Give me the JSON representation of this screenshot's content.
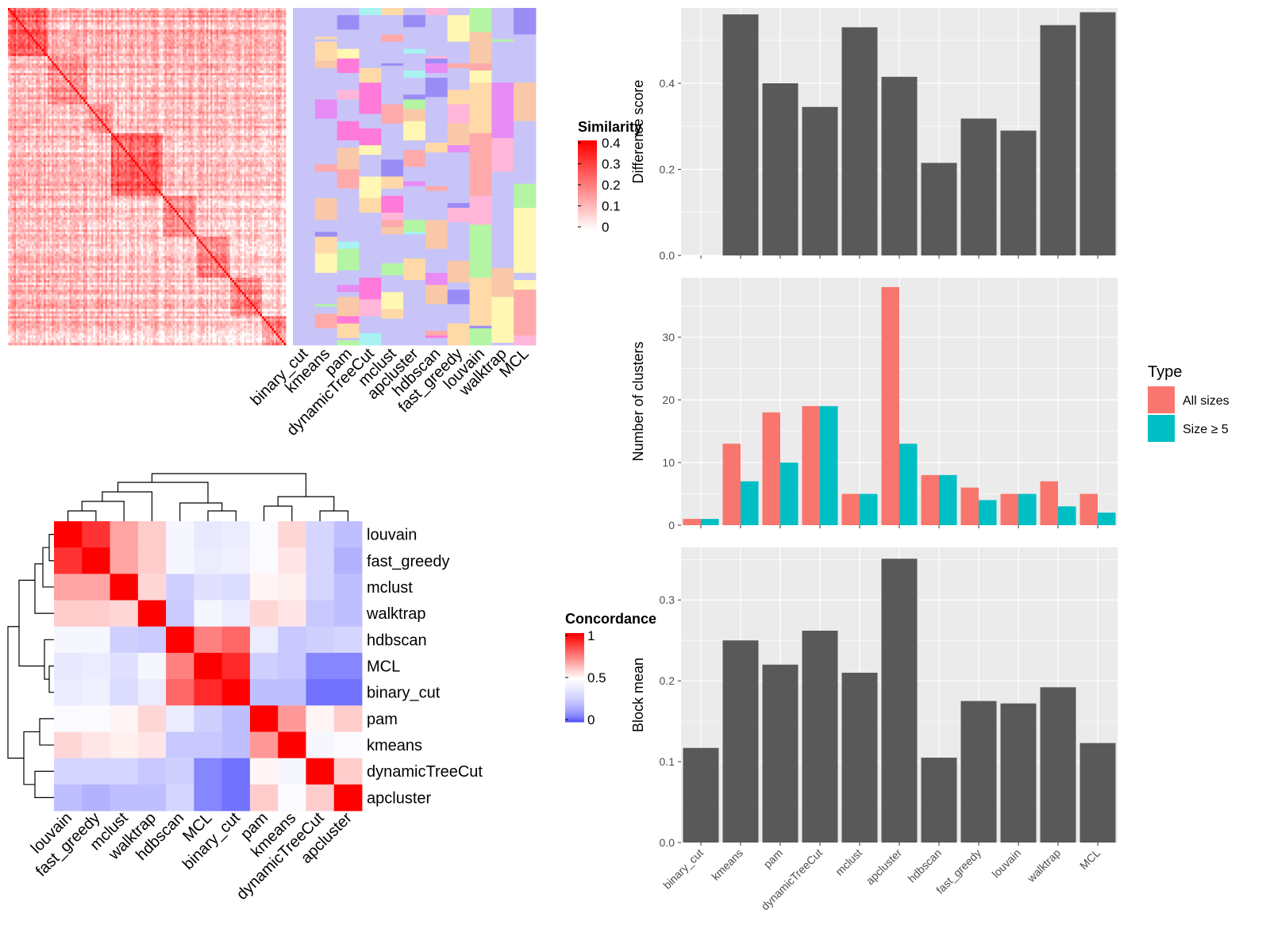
{
  "chart_data": [
    {
      "type": "heatmap",
      "name": "similarity-heatmap",
      "n": 140,
      "legend": {
        "title": "Similarity",
        "ticks": [
          "0",
          "0.1",
          "0.2",
          "0.3",
          "0.4"
        ],
        "values": [
          0,
          0.1,
          0.2,
          0.3,
          0.4
        ]
      },
      "annotation_columns": [
        "binary_cut",
        "kmeans",
        "pam",
        "dynamicTreeCut",
        "mclust",
        "apcluster",
        "hdbscan",
        "fast_greedy",
        "louvain",
        "walktrap",
        "MCL"
      ],
      "background_class_color": "#c8c4f8"
    },
    {
      "type": "heatmap",
      "name": "concordance-heatmap",
      "rows": [
        "louvain",
        "fast_greedy",
        "mclust",
        "walktrap",
        "hdbscan",
        "MCL",
        "binary_cut",
        "pam",
        "kmeans",
        "dynamicTreeCut",
        "apcluster"
      ],
      "cols": [
        "louvain",
        "fast_greedy",
        "mclust",
        "walktrap",
        "hdbscan",
        "MCL",
        "binary_cut",
        "pam",
        "kmeans",
        "dynamicTreeCut",
        "apcluster"
      ],
      "values": [
        [
          1.0,
          0.9,
          0.68,
          0.6,
          0.45,
          0.38,
          0.4,
          0.48,
          0.58,
          0.3,
          0.22
        ],
        [
          0.9,
          1.0,
          0.68,
          0.6,
          0.45,
          0.4,
          0.42,
          0.47,
          0.55,
          0.3,
          0.18
        ],
        [
          0.68,
          0.68,
          1.0,
          0.58,
          0.28,
          0.35,
          0.33,
          0.52,
          0.53,
          0.3,
          0.22
        ],
        [
          0.6,
          0.6,
          0.58,
          1.0,
          0.26,
          0.45,
          0.4,
          0.58,
          0.55,
          0.25,
          0.22
        ],
        [
          0.45,
          0.45,
          0.28,
          0.26,
          1.0,
          0.75,
          0.8,
          0.4,
          0.25,
          0.28,
          0.3
        ],
        [
          0.38,
          0.4,
          0.35,
          0.45,
          0.75,
          1.0,
          0.92,
          0.28,
          0.25,
          0.08,
          0.08
        ],
        [
          0.4,
          0.42,
          0.33,
          0.4,
          0.8,
          0.92,
          1.0,
          0.22,
          0.22,
          0.05,
          0.05
        ],
        [
          0.48,
          0.47,
          0.52,
          0.58,
          0.4,
          0.28,
          0.22,
          1.0,
          0.7,
          0.52,
          0.6
        ],
        [
          0.58,
          0.55,
          0.53,
          0.55,
          0.25,
          0.25,
          0.22,
          0.7,
          1.0,
          0.45,
          0.48
        ],
        [
          0.3,
          0.3,
          0.3,
          0.25,
          0.28,
          0.08,
          0.05,
          0.52,
          0.45,
          1.0,
          0.6
        ],
        [
          0.22,
          0.18,
          0.22,
          0.22,
          0.3,
          0.08,
          0.05,
          0.6,
          0.48,
          0.6,
          1.0
        ]
      ],
      "legend": {
        "title": "Concordance",
        "ticks": [
          "0",
          "0.5",
          "1"
        ],
        "values": [
          0,
          0.5,
          1
        ]
      }
    },
    {
      "type": "bar",
      "name": "difference-score",
      "categories": [
        "binary_cut",
        "kmeans",
        "pam",
        "dynamicTreeCut",
        "mclust",
        "apcluster",
        "hdbscan",
        "fast_greedy",
        "louvain",
        "walktrap",
        "MCL"
      ],
      "values": [
        0.0,
        0.56,
        0.4,
        0.345,
        0.53,
        0.415,
        0.215,
        0.318,
        0.29,
        0.535,
        0.565
      ],
      "ylabel": "Difference score",
      "yticks": [
        "0.0",
        "0.2",
        "0.4"
      ],
      "ylim": [
        0,
        0.575
      ]
    },
    {
      "type": "bar",
      "name": "number-of-clusters",
      "categories": [
        "binary_cut",
        "kmeans",
        "pam",
        "dynamicTreeCut",
        "mclust",
        "apcluster",
        "hdbscan",
        "fast_greedy",
        "louvain",
        "walktrap",
        "MCL"
      ],
      "series": [
        {
          "name": "All sizes",
          "values": [
            1,
            13,
            18,
            19,
            5,
            38,
            8,
            6,
            5,
            7,
            5
          ],
          "color": "#f8766d"
        },
        {
          "name": "Size ≥ 5",
          "values": [
            1,
            7,
            10,
            19,
            5,
            13,
            8,
            4,
            5,
            3,
            2
          ],
          "color": "#00bfc4"
        }
      ],
      "ylabel": "Number of clusters",
      "yticks": [
        "0",
        "10",
        "20",
        "30"
      ],
      "ylim": [
        0,
        39.5
      ],
      "legend": {
        "title": "Type",
        "placement": "right"
      }
    },
    {
      "type": "bar",
      "name": "block-mean",
      "categories": [
        "binary_cut",
        "kmeans",
        "pam",
        "dynamicTreeCut",
        "mclust",
        "apcluster",
        "hdbscan",
        "fast_greedy",
        "louvain",
        "walktrap",
        "MCL"
      ],
      "values": [
        0.117,
        0.25,
        0.22,
        0.262,
        0.21,
        0.351,
        0.105,
        0.175,
        0.172,
        0.192,
        0.123
      ],
      "ylabel": "Block mean",
      "yticks": [
        "0.0",
        "0.1",
        "0.2",
        "0.3"
      ],
      "ylim": [
        0,
        0.365
      ],
      "xticks_rotated": true
    }
  ],
  "colors": {
    "bar_dark": "#595959",
    "panel_bg": "#ebebeb",
    "grid": "#ffffff",
    "similarity_high": "#ff0000",
    "concordance_low": "#0000ff",
    "concordance_mid": "#ffffff",
    "concordance_high": "#ff0000"
  }
}
